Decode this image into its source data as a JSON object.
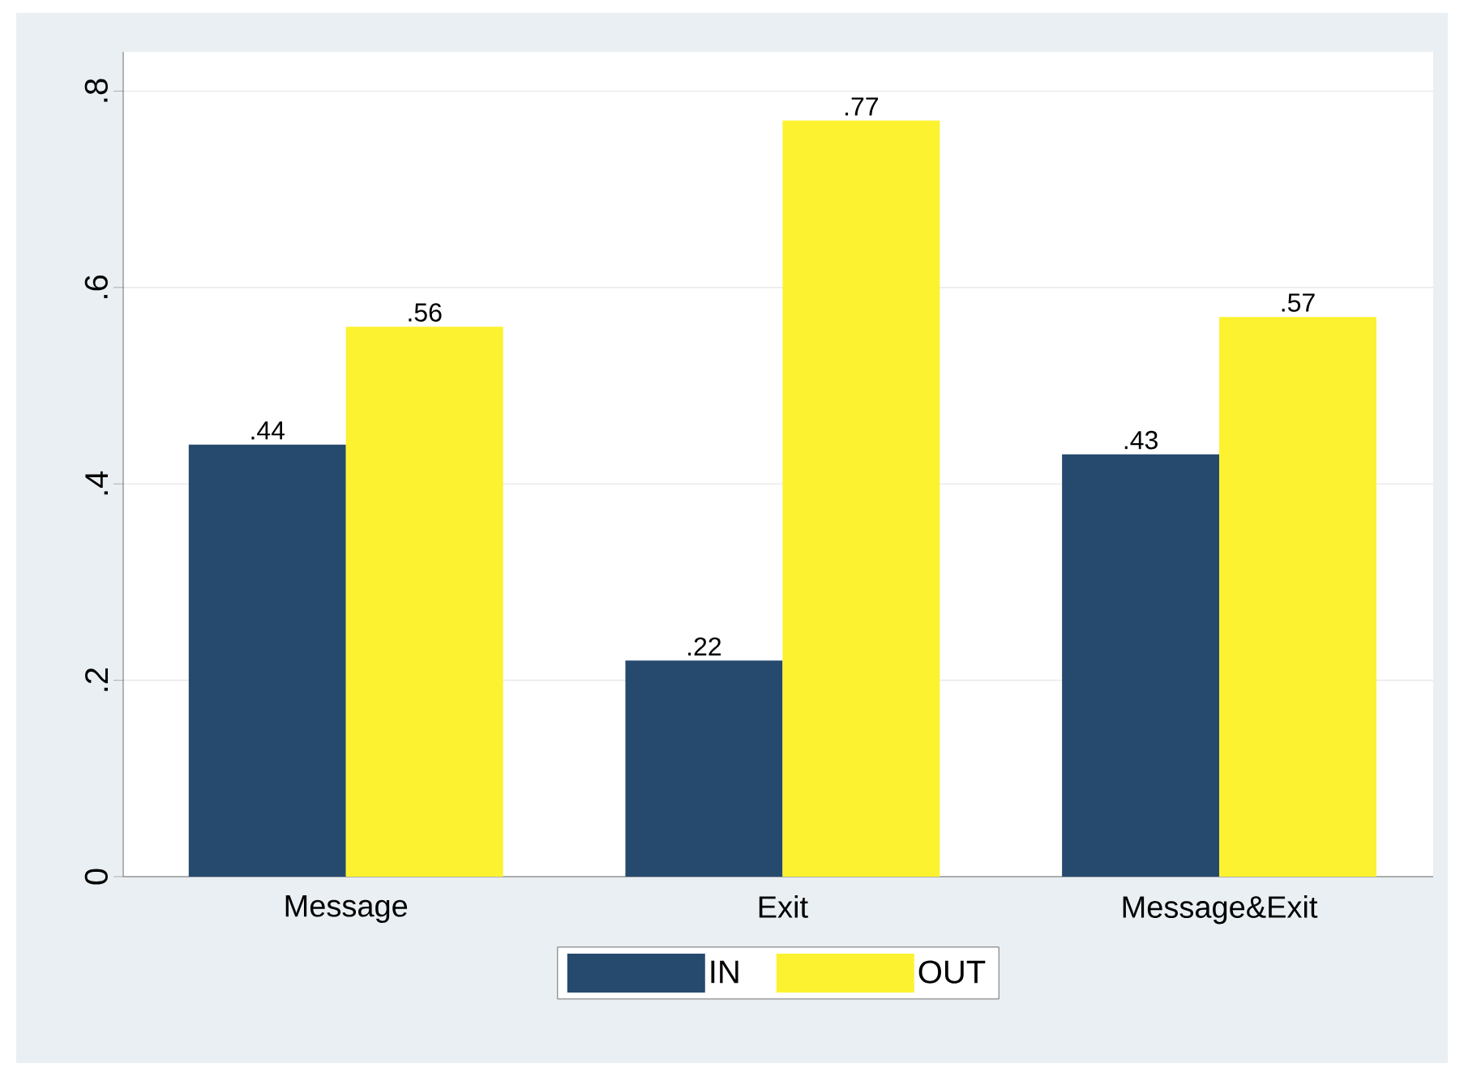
{
  "chart_data": {
    "type": "bar",
    "categories": [
      "Message",
      "Exit",
      "Message&Exit"
    ],
    "series": [
      {
        "name": "IN",
        "color": "#264a6e",
        "values": [
          0.44,
          0.22,
          0.43
        ],
        "value_labels": [
          ".44",
          ".22",
          ".43"
        ]
      },
      {
        "name": "OUT",
        "color": "#fcf22f",
        "values": [
          0.56,
          0.77,
          0.57
        ],
        "value_labels": [
          ".56",
          ".77",
          ".57"
        ]
      }
    ],
    "ylim": [
      0,
      0.84
    ],
    "yticks": [
      0,
      {
        "value": 0.2,
        "label": ".2"
      },
      {
        "value": 0.4,
        "label": ".4"
      },
      {
        "value": 0.6,
        "label": ".6"
      },
      {
        "value": 0.8,
        "label": ".8"
      }
    ],
    "grid": "y",
    "legend": "bottom"
  }
}
